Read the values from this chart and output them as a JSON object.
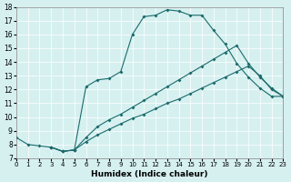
{
  "xlabel": "Humidex (Indice chaleur)",
  "background_color": "#d6f0f0",
  "line_color": "#1a6b6b",
  "xlim": [
    0,
    23
  ],
  "ylim": [
    7,
    18
  ],
  "xticks": [
    0,
    1,
    2,
    3,
    4,
    5,
    6,
    7,
    8,
    9,
    10,
    11,
    12,
    13,
    14,
    15,
    16,
    17,
    18,
    19,
    20,
    21,
    22,
    23
  ],
  "yticks": [
    7,
    8,
    9,
    10,
    11,
    12,
    13,
    14,
    15,
    16,
    17,
    18
  ],
  "curve1_x": [
    0,
    1,
    2,
    3,
    4,
    5,
    6,
    7,
    8,
    9,
    10,
    11,
    12,
    13,
    14,
    15,
    16,
    17,
    18,
    19,
    20,
    21,
    22,
    23
  ],
  "curve1_y": [
    8.5,
    8.0,
    7.9,
    7.8,
    7.5,
    7.6,
    12.2,
    12.7,
    12.8,
    13.3,
    16.0,
    17.3,
    17.4,
    17.8,
    17.7,
    17.4,
    17.4,
    16.3,
    15.3,
    13.9,
    12.9,
    12.1,
    11.5,
    11.5
  ],
  "curve2_x": [
    3,
    4,
    5,
    6,
    7,
    8,
    9,
    10,
    11,
    12,
    13,
    14,
    15,
    16,
    17,
    18,
    19,
    20,
    21,
    22,
    23
  ],
  "curve2_y": [
    7.8,
    7.5,
    7.6,
    8.5,
    9.3,
    9.8,
    10.2,
    10.7,
    11.2,
    11.7,
    12.2,
    12.7,
    13.2,
    13.7,
    14.2,
    14.7,
    15.2,
    13.9,
    12.9,
    12.1,
    11.5
  ],
  "curve3_x": [
    3,
    4,
    5,
    6,
    7,
    8,
    9,
    10,
    11,
    12,
    13,
    14,
    15,
    16,
    17,
    18,
    19,
    20,
    21,
    22,
    23
  ],
  "curve3_y": [
    7.8,
    7.5,
    7.6,
    8.2,
    8.7,
    9.1,
    9.5,
    9.9,
    10.2,
    10.6,
    11.0,
    11.3,
    11.7,
    12.1,
    12.5,
    12.9,
    13.3,
    13.7,
    13.0,
    12.0,
    11.5
  ]
}
